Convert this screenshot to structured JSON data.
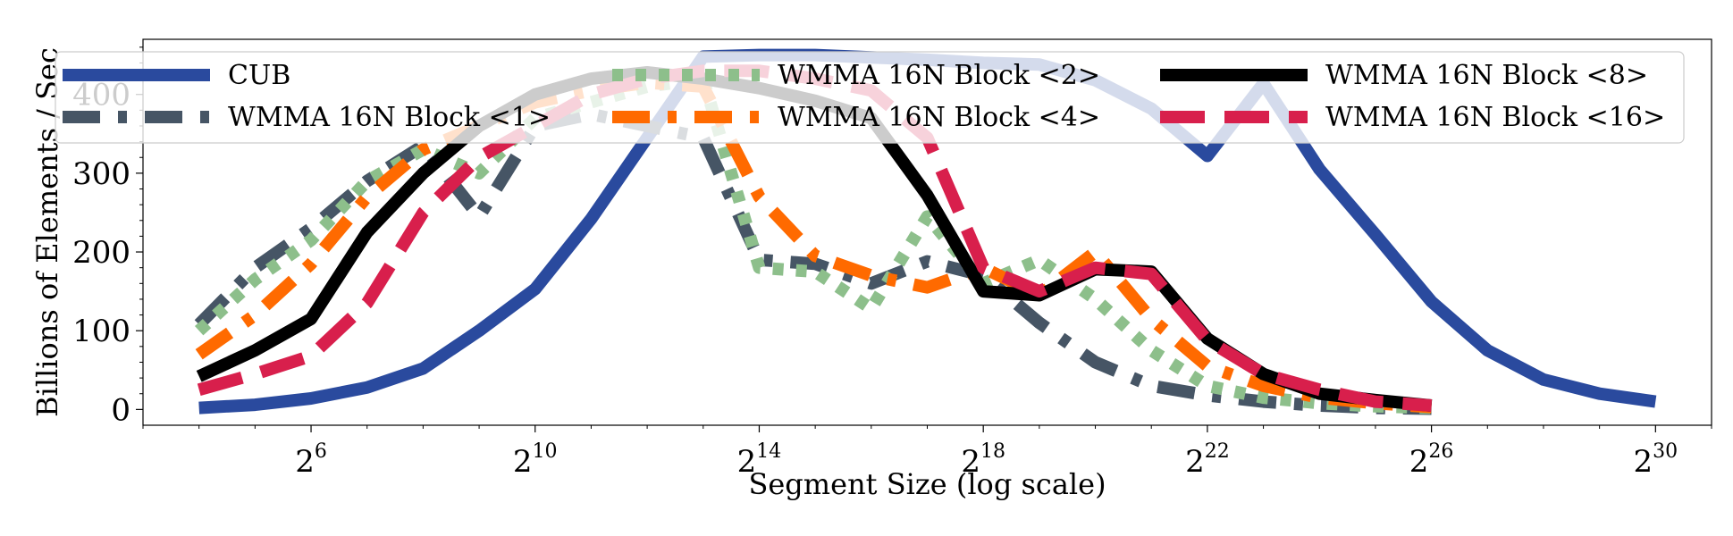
{
  "chart_data": {
    "type": "line",
    "title": "",
    "xlabel": "Segment Size (log scale)",
    "ylabel": "Billions of Elements / Sec",
    "xscale": "log2",
    "xlim": [
      3,
      31
    ],
    "ylim": [
      -20,
      470
    ],
    "x_ticks": [
      {
        "base": "2",
        "exp": "6",
        "value": 6
      },
      {
        "base": "2",
        "exp": "10",
        "value": 10
      },
      {
        "base": "2",
        "exp": "14",
        "value": 14
      },
      {
        "base": "2",
        "exp": "18",
        "value": 18
      },
      {
        "base": "2",
        "exp": "22",
        "value": 22
      },
      {
        "base": "2",
        "exp": "26",
        "value": 26
      },
      {
        "base": "2",
        "exp": "30",
        "value": 30
      }
    ],
    "y_ticks": [
      "0",
      "100",
      "200",
      "300",
      "400"
    ],
    "y_tick_values": [
      0,
      100,
      200,
      300,
      400
    ],
    "legend_position": "top",
    "grid": false,
    "series": [
      {
        "name": "CUB",
        "color": "#2a4a9e",
        "style": "solid",
        "x": [
          4,
          5,
          6,
          7,
          8,
          9,
          10,
          11,
          12,
          13,
          14,
          15,
          16,
          17,
          18,
          19,
          20,
          21,
          22,
          23,
          24,
          25,
          26,
          27,
          28,
          29,
          30
        ],
        "y": [
          2,
          6,
          14,
          28,
          52,
          100,
          153,
          242,
          345,
          448,
          450,
          450,
          447,
          444,
          440,
          438,
          418,
          382,
          322,
          414,
          305,
          222,
          137,
          75,
          38,
          20,
          10
        ]
      },
      {
        "name": "WMMA 16N Block <1>",
        "color": "#465565",
        "style": "dashdot",
        "x": [
          4,
          5,
          6,
          7,
          8,
          9,
          10,
          11,
          12,
          13,
          14,
          15,
          16,
          17,
          18,
          19,
          20,
          21,
          22,
          23,
          24,
          25,
          26
        ],
        "y": [
          108,
          180,
          230,
          290,
          335,
          245,
          360,
          375,
          360,
          345,
          190,
          185,
          160,
          188,
          170,
          110,
          60,
          30,
          18,
          10,
          5,
          2,
          1
        ]
      },
      {
        "name": "WMMA 16N Block <2>",
        "color": "#8dbf8b",
        "style": "dotted",
        "x": [
          4,
          5,
          6,
          7,
          8,
          9,
          10,
          11,
          12,
          13,
          14,
          15,
          16,
          17,
          18,
          19,
          20,
          21,
          22,
          23,
          24,
          25,
          26
        ],
        "y": [
          100,
          165,
          215,
          290,
          330,
          300,
          370,
          390,
          410,
          420,
          180,
          175,
          128,
          245,
          160,
          190,
          140,
          75,
          30,
          15,
          8,
          4,
          2
        ]
      },
      {
        "name": "WMMA 16N Block <4>",
        "color": "#ff6a00",
        "style": "dashdot",
        "x": [
          4,
          5,
          6,
          7,
          8,
          9,
          10,
          11,
          12,
          13,
          14,
          15,
          16,
          17,
          18,
          19,
          20,
          21,
          22,
          23,
          24,
          25,
          26
        ],
        "y": [
          70,
          120,
          185,
          270,
          330,
          360,
          390,
          405,
          415,
          410,
          270,
          195,
          170,
          155,
          180,
          145,
          200,
          115,
          55,
          30,
          15,
          8,
          3
        ]
      },
      {
        "name": "WMMA 16N Block <8>",
        "color": "#000000",
        "style": "solid",
        "x": [
          4,
          5,
          6,
          7,
          8,
          9,
          10,
          11,
          12,
          13,
          14,
          15,
          16,
          17,
          18,
          19,
          20,
          21,
          22,
          23,
          24,
          25,
          26
        ],
        "y": [
          42,
          75,
          115,
          225,
          300,
          360,
          400,
          420,
          428,
          420,
          408,
          392,
          370,
          272,
          150,
          145,
          178,
          175,
          90,
          45,
          20,
          12,
          5
        ]
      },
      {
        "name": "WMMA 16N Block <16>",
        "color": "#d81f4c",
        "style": "dashed",
        "x": [
          4,
          5,
          6,
          7,
          8,
          9,
          10,
          11,
          12,
          13,
          14,
          15,
          16,
          17,
          18,
          19,
          20,
          21,
          22,
          23,
          24,
          25,
          26
        ],
        "y": [
          25,
          45,
          68,
          135,
          250,
          320,
          360,
          400,
          420,
          430,
          430,
          420,
          405,
          345,
          180,
          150,
          180,
          172,
          88,
          45,
          25,
          10,
          5
        ]
      }
    ]
  }
}
